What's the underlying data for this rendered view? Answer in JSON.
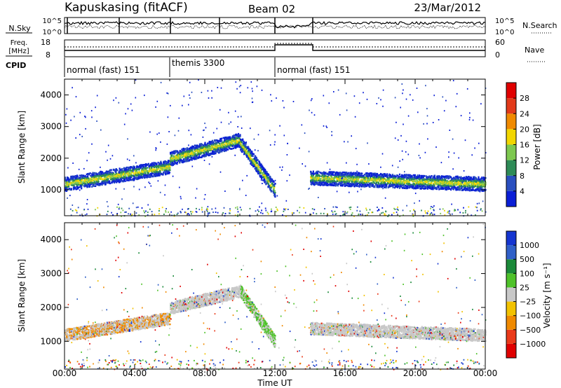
{
  "header": {
    "station": "Kapuskasing (fitACF)",
    "beam": "Beam 02",
    "date": "23/Mar/2012"
  },
  "noise_panel": {
    "left_label": "N.Sky",
    "right_label": "N.Search",
    "left_ticks": [
      "10^5",
      "10^0"
    ],
    "right_ticks": [
      "10^5",
      "10^0"
    ]
  },
  "freq_panel": {
    "left_label_1": "Freq.",
    "left_label_2": "[MHz]",
    "right_label": "Nave",
    "left_ticks": [
      "18",
      "8"
    ],
    "right_ticks": [
      "60",
      "0"
    ]
  },
  "cpid": {
    "label": "CPID",
    "segments": [
      {
        "name": "normal (fast) 151",
        "start_hour": 0,
        "end_hour": 6
      },
      {
        "name": "themis 3300",
        "start_hour": 6,
        "end_hour": 12
      },
      {
        "name": "normal (fast) 151",
        "start_hour": 12,
        "end_hour": 24
      }
    ]
  },
  "chart_data": [
    {
      "type": "heatmap",
      "name": "power",
      "ylabel": "Slant Range [km]",
      "yticks": [
        1000,
        2000,
        3000,
        4000
      ],
      "ylim": [
        180,
        4500
      ],
      "xlim": [
        0,
        24
      ],
      "colorbar": {
        "label": "Power [dB]",
        "ticks": [
          "4",
          "8",
          "12",
          "16",
          "20",
          "24",
          "28"
        ],
        "colors": [
          "#0b1fd6",
          "#2a4fbf",
          "#2e8b57",
          "#7ec850",
          "#f2d600",
          "#f08a00",
          "#e23a1a",
          "#e00000"
        ]
      },
      "echo_bands": [
        {
          "t0": 0,
          "t1": 6,
          "r0": 1200,
          "r1": 1750
        },
        {
          "t0": 6,
          "t1": 10,
          "r0": 2000,
          "r1": 2600
        },
        {
          "t0": 10,
          "t1": 12,
          "r0": 2500,
          "r1": 1000
        },
        {
          "t0": 14,
          "t1": 24,
          "r0": 1400,
          "r1": 1200
        }
      ]
    },
    {
      "type": "heatmap",
      "name": "velocity",
      "ylabel": "Slant Range [km]",
      "yticks": [
        1000,
        2000,
        3000,
        4000
      ],
      "ylim": [
        180,
        4500
      ],
      "xlim": [
        0,
        24
      ],
      "xticks": [
        "00:00",
        "04:00",
        "08:00",
        "12:00",
        "16:00",
        "20:00",
        "00:00"
      ],
      "xlabel": "Time UT",
      "colorbar": {
        "label": "Velocity [m s⁻¹]",
        "ticks": [
          "1000",
          "500",
          "100",
          "25",
          "−25",
          "−100",
          "−500",
          "−1000"
        ],
        "colors": [
          "#1535d0",
          "#3060c8",
          "#1b8a3a",
          "#4fc22a",
          "#c8c8c8",
          "#f2c200",
          "#f08a00",
          "#ea3a1a",
          "#e00000"
        ]
      },
      "echo_bands": [
        {
          "t0": 0,
          "t1": 6,
          "r0": 1200,
          "r1": 1700
        },
        {
          "t0": 6,
          "t1": 10,
          "r0": 2000,
          "r1": 2500
        },
        {
          "t0": 10,
          "t1": 12,
          "r0": 2500,
          "r1": 1000
        },
        {
          "t0": 14,
          "t1": 24,
          "r0": 1400,
          "r1": 1200
        }
      ]
    }
  ]
}
